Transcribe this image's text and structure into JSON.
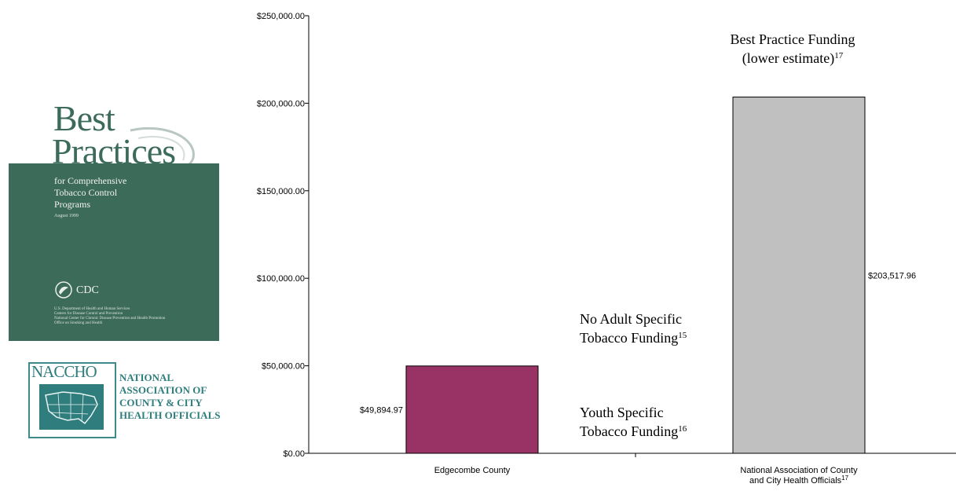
{
  "chart_data": {
    "type": "bar",
    "categories": [
      [
        "Edgecombe County"
      ],
      [
        "National Association of County",
        "and City Health Officials"
      ]
    ],
    "category_superscripts": [
      "",
      "17"
    ],
    "values": [
      49894.97,
      203517.96
    ],
    "value_labels": [
      "$49,894.97",
      "$203,517.96"
    ],
    "colors": [
      "#993366",
      "#c0c0c0"
    ],
    "ylim": [
      0,
      250000
    ],
    "y_ticks": [
      0,
      50000,
      100000,
      150000,
      200000,
      250000
    ],
    "y_tick_labels": [
      "$0.00",
      "$50,000.00",
      "$100,000.00",
      "$150,000.00",
      "$200,000.00",
      "$250,000.00"
    ],
    "title": "",
    "xlabel": "",
    "ylabel": "",
    "grid": false,
    "legend": "none",
    "annotations": [
      {
        "lines": [
          "No Adult Specific",
          "Tobacco Funding"
        ],
        "superscript": "15"
      },
      {
        "lines": [
          "Youth Specific",
          "Tobacco Funding"
        ],
        "superscript": "16"
      },
      {
        "lines": [
          "Best Practice Funding",
          "(lower estimate)"
        ],
        "superscript": "17"
      }
    ]
  },
  "cover": {
    "title_line1": "Best",
    "title_line2": "Practices",
    "subtitle": [
      "for Comprehensive",
      "Tobacco Control",
      "Programs"
    ],
    "date": "August 1999",
    "agency": "CDC",
    "fine_print": [
      "U.S. Department of Health and Human Services",
      "Centers for Disease Control and Prevention",
      "National Center for Chronic Disease Prevention and Health Promotion",
      "Office on Smoking and Health"
    ]
  },
  "naccho": {
    "abbr": "NACCHO",
    "name": [
      "NATIONAL",
      "ASSOCIATION OF",
      "COUNTY & CITY",
      "HEALTH OFFICIALS"
    ]
  }
}
